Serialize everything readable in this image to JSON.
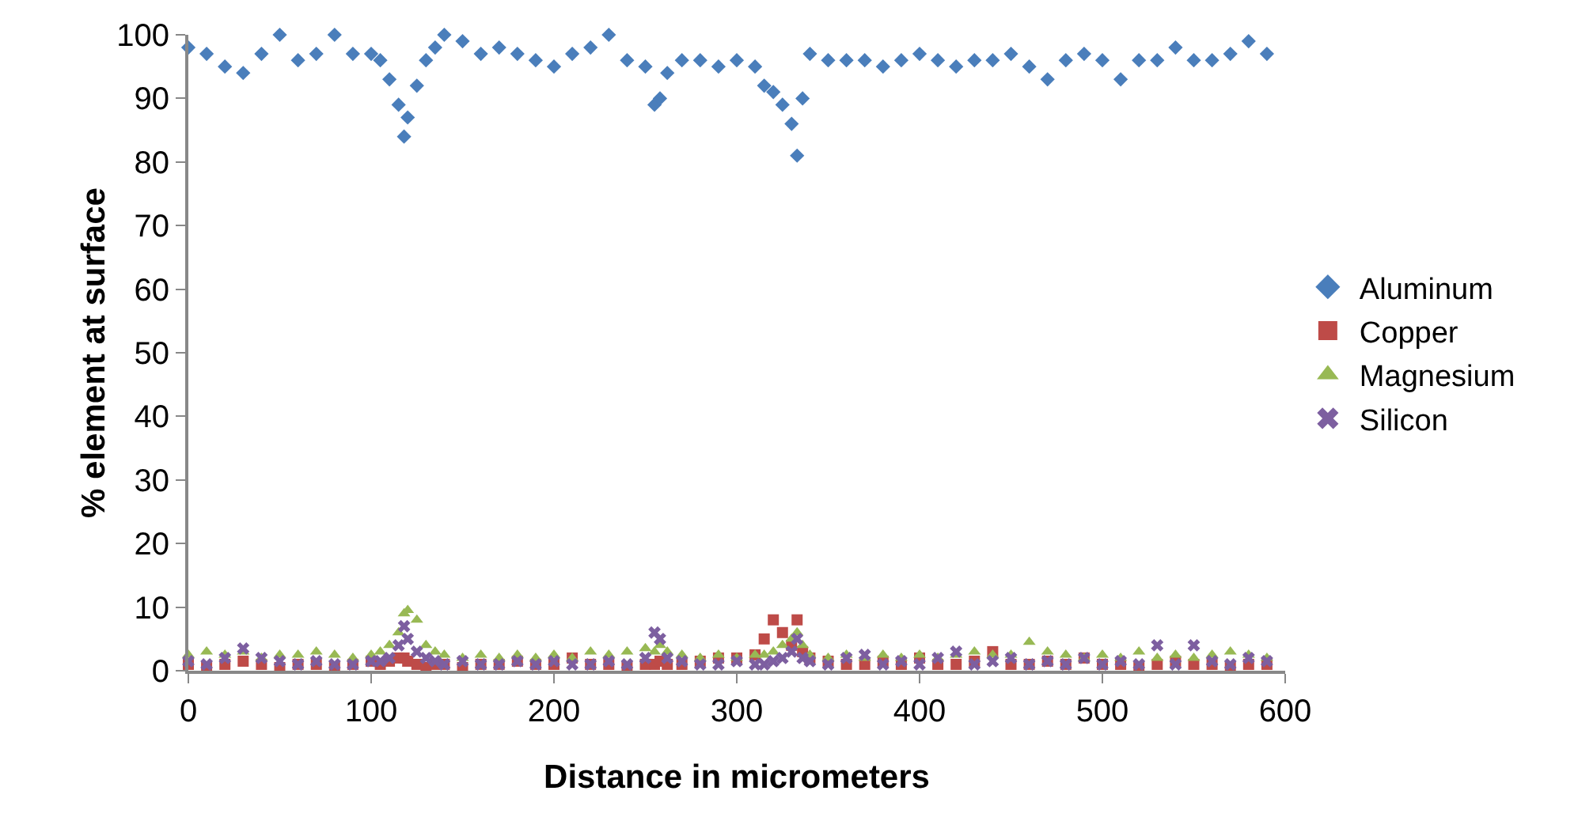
{
  "chart_data": {
    "type": "scatter",
    "xlabel": "Distance in micrometers",
    "ylabel": "% element at surface",
    "x": [
      0,
      10,
      20,
      30,
      40,
      50,
      60,
      70,
      80,
      90,
      100,
      105,
      110,
      115,
      118,
      120,
      125,
      130,
      135,
      140,
      150,
      160,
      170,
      180,
      190,
      200,
      210,
      220,
      230,
      240,
      250,
      255,
      258,
      262,
      270,
      280,
      290,
      300,
      310,
      315,
      320,
      325,
      330,
      333,
      336,
      340,
      350,
      360,
      370,
      380,
      390,
      400,
      410,
      420,
      430,
      440,
      450,
      460,
      470,
      480,
      490,
      500,
      510,
      520,
      530,
      540,
      550,
      560,
      570,
      580,
      590
    ],
    "series": [
      {
        "name": "Aluminum",
        "color": "#4a7ebb",
        "marker": "diamond",
        "values": [
          98,
          97,
          95,
          94,
          97,
          100,
          96,
          97,
          100,
          97,
          97,
          96,
          93,
          89,
          84,
          87,
          92,
          96,
          98,
          100,
          99,
          97,
          98,
          97,
          96,
          95,
          97,
          98,
          100,
          96,
          95,
          89,
          90,
          94,
          96,
          96,
          95,
          96,
          95,
          92,
          91,
          89,
          86,
          81,
          90,
          97,
          96,
          96,
          96,
          95,
          96,
          97,
          96,
          95,
          96,
          96,
          97,
          95,
          93,
          96,
          97,
          96,
          93,
          96,
          96,
          98,
          96,
          96,
          97,
          99,
          97
        ]
      },
      {
        "name": "Copper",
        "color": "#be4b48",
        "marker": "square",
        "values": [
          1,
          0.5,
          1,
          1.5,
          1,
          0.5,
          1,
          1,
          0.5,
          1,
          1.5,
          1,
          1.5,
          2,
          2,
          1.5,
          1,
          0.5,
          1,
          1,
          0.5,
          1,
          1,
          1.5,
          1,
          1,
          2,
          1,
          1,
          0.5,
          1,
          1,
          1.5,
          1,
          1,
          1.5,
          2,
          2,
          2.5,
          5,
          8,
          6,
          4,
          8,
          3,
          2,
          1.5,
          1,
          1,
          1.5,
          1,
          2,
          1,
          1,
          1.5,
          3,
          1,
          1,
          1.5,
          1,
          2,
          1,
          1,
          0.5,
          1,
          1.5,
          1,
          1,
          0.5,
          1,
          1
        ]
      },
      {
        "name": "Magnesium",
        "color": "#98b954",
        "marker": "triangle",
        "values": [
          2.5,
          3,
          2.5,
          3,
          2,
          2.5,
          2.5,
          3,
          2.5,
          2,
          2.5,
          3,
          4,
          6,
          9,
          9.5,
          8,
          4,
          3,
          2.5,
          2,
          2.5,
          2,
          2.5,
          2,
          2.5,
          2,
          3,
          2.5,
          3,
          3.5,
          3,
          4,
          3,
          2.5,
          2,
          2.5,
          2,
          2.5,
          2.5,
          3,
          4,
          5,
          6,
          4,
          2.5,
          2,
          2.5,
          2,
          2.5,
          2,
          2.5,
          2,
          2.5,
          3,
          2.5,
          2.5,
          4.5,
          3,
          2.5,
          2,
          2.5,
          2,
          3,
          2,
          2.5,
          2,
          2.5,
          3,
          2.5,
          2
        ]
      },
      {
        "name": "Silicon",
        "color": "#7d5fa0",
        "marker": "cross",
        "values": [
          1.5,
          1,
          2,
          3.5,
          2,
          1.5,
          1,
          1.5,
          1,
          1,
          1.5,
          1.5,
          2,
          4,
          7,
          5,
          3,
          2,
          1.5,
          1,
          1.5,
          1,
          1,
          1.5,
          1,
          1.5,
          1,
          1,
          1.5,
          1,
          2,
          6,
          5,
          2,
          1.5,
          1,
          1,
          1.5,
          1,
          1,
          1.5,
          2,
          3,
          5,
          2,
          1.5,
          1,
          2,
          2.5,
          1,
          1.5,
          1,
          2,
          3,
          1,
          1.5,
          2,
          1,
          1.5,
          1,
          2,
          1,
          1.5,
          1,
          4,
          1,
          4,
          1.5,
          1,
          2,
          1.5
        ]
      }
    ],
    "xlim": [
      0,
      600
    ],
    "xticks": [
      0,
      100,
      200,
      300,
      400,
      500,
      600
    ],
    "ylim": [
      0,
      100
    ],
    "yticks": [
      0,
      10,
      20,
      30,
      40,
      50,
      60,
      70,
      80,
      90,
      100
    ],
    "grid": false,
    "legend": "right"
  }
}
